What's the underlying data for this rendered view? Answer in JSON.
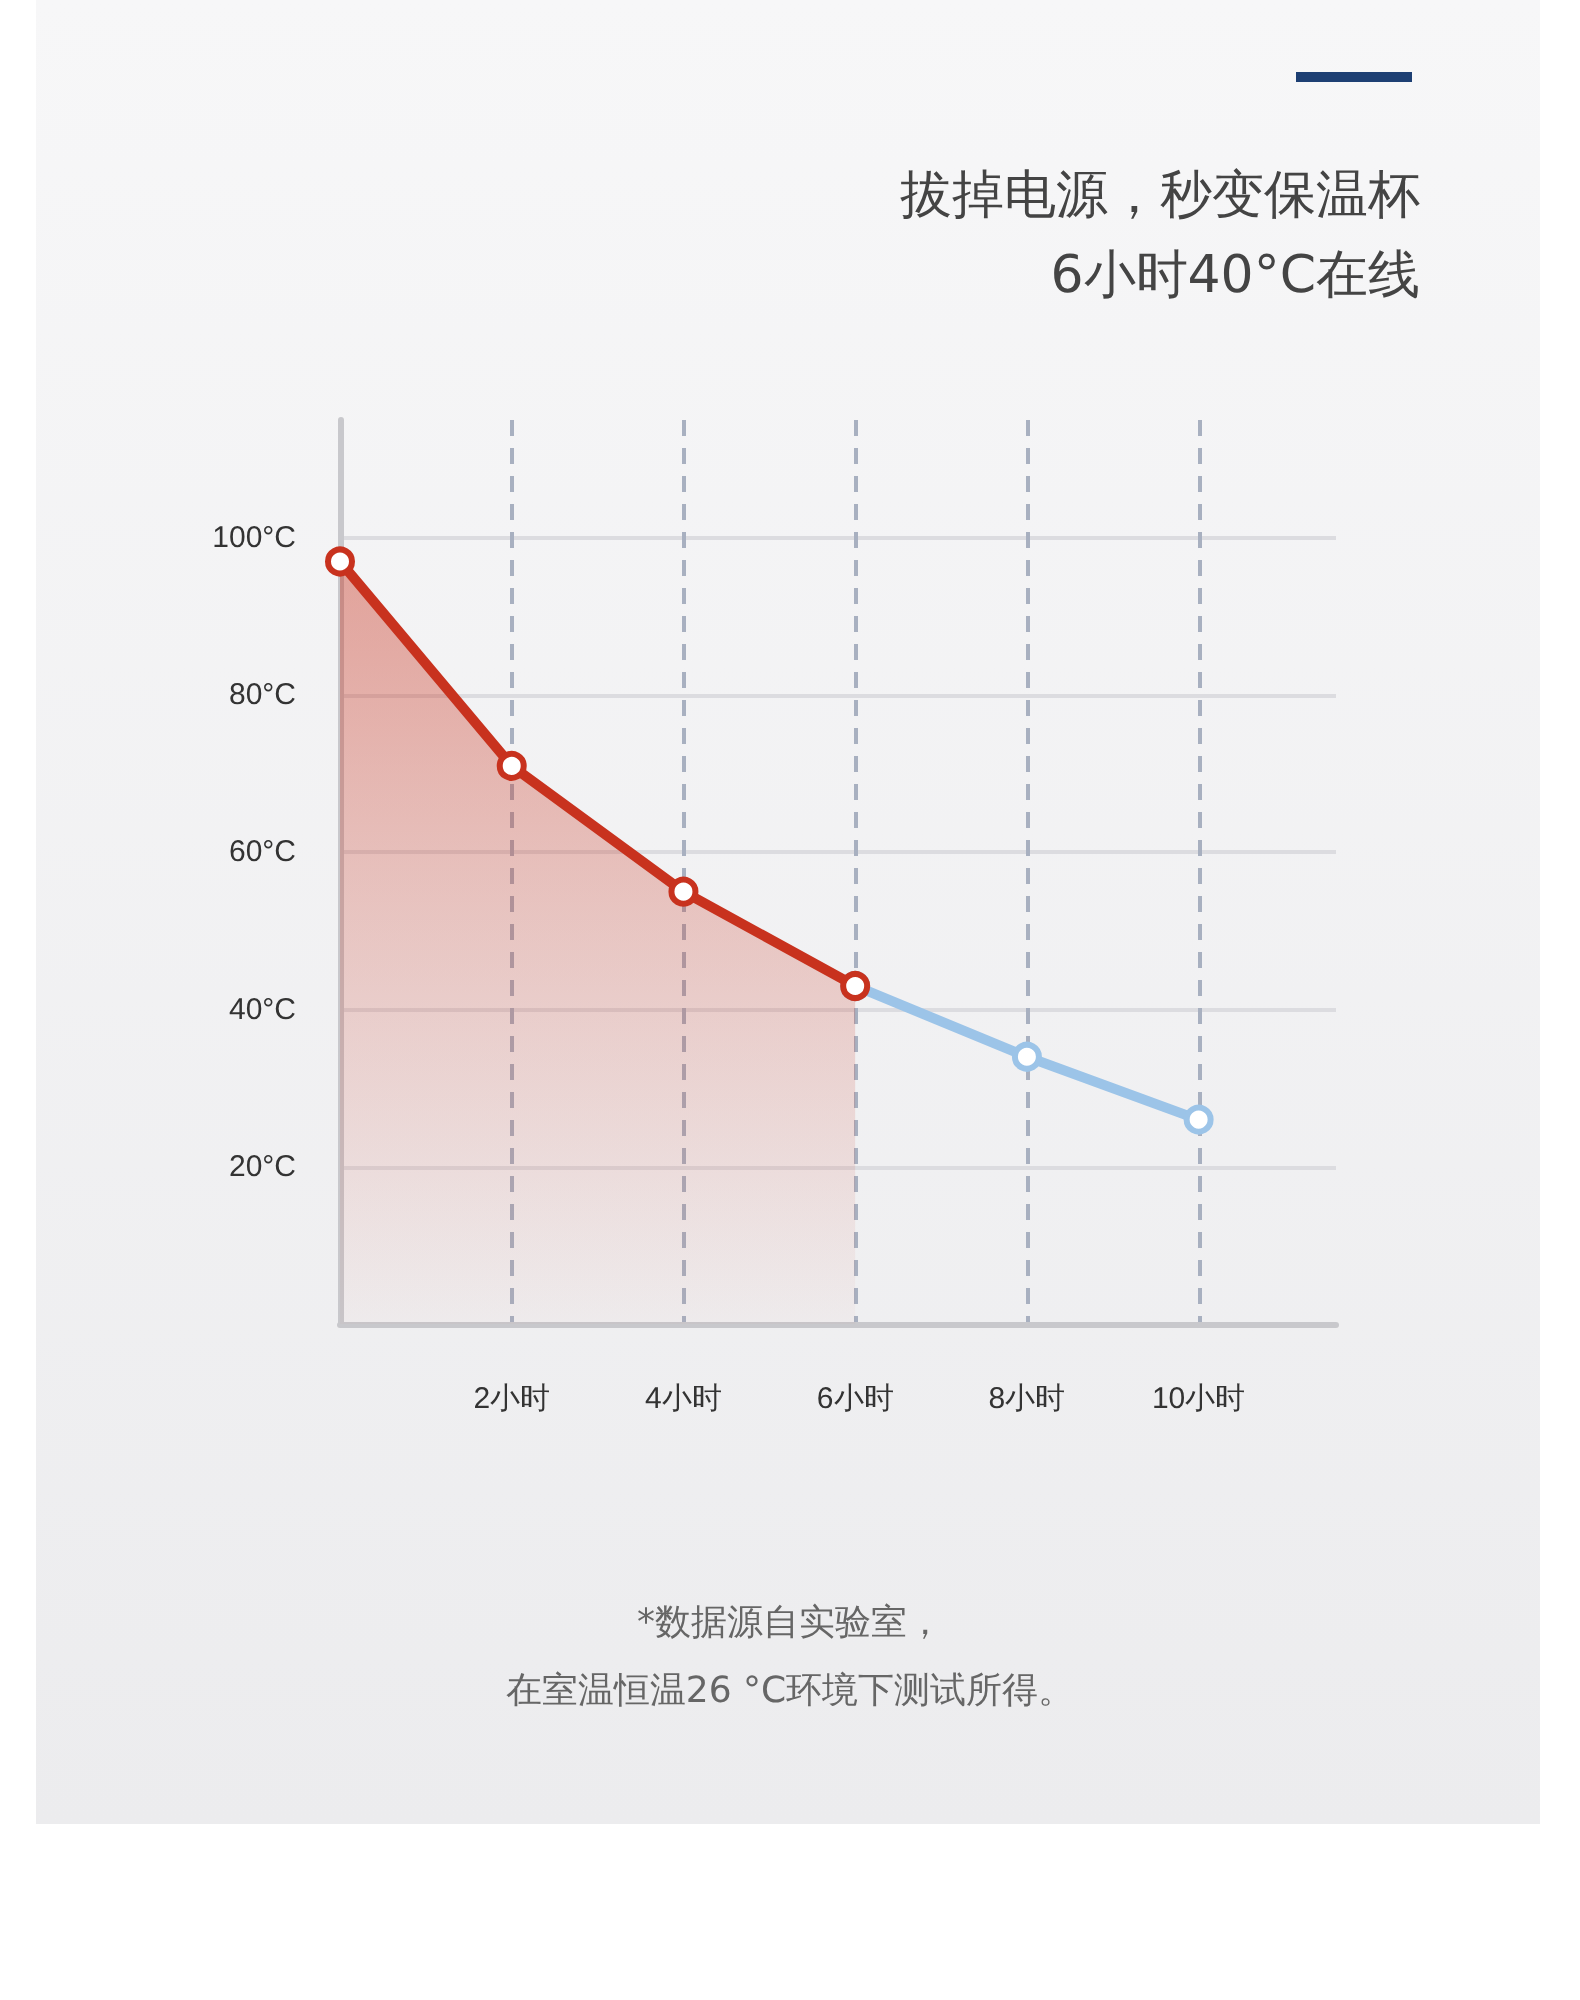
{
  "chart_data": {
    "type": "line",
    "title": "拔掉电源，秒变保温杯",
    "subtitle": "6小时40°C在线",
    "annotations": [
      "*数据源自实验室，",
      "在室温恒温26 °C环境下测试所得。"
    ],
    "series": [
      {
        "type": "area",
        "color": "#c8321e",
        "x": [
          0,
          2,
          4,
          6
        ],
        "values": [
          97,
          71,
          55,
          43
        ]
      },
      {
        "type": "line",
        "color": "#9cc4e8",
        "x": [
          6,
          8,
          10
        ],
        "values": [
          43,
          34,
          26
        ]
      }
    ],
    "xlim": [
      0,
      11.6
    ],
    "xticks": [
      {
        "value": 2,
        "label": "2小时"
      },
      {
        "value": 4,
        "label": "4小时"
      },
      {
        "value": 6,
        "label": "6小时"
      },
      {
        "value": 8,
        "label": "8小时"
      },
      {
        "value": 10,
        "label": "10小时"
      }
    ],
    "ylim": [
      0,
      115
    ],
    "yticks": [
      {
        "value": 20,
        "label": "20°C"
      },
      {
        "value": 40,
        "label": "40°C"
      },
      {
        "value": 60,
        "label": "60°C"
      },
      {
        "value": 80,
        "label": "80°C"
      },
      {
        "value": 100,
        "label": "100°C"
      }
    ],
    "grid": true,
    "marker": "circle",
    "line_style": "solid"
  }
}
